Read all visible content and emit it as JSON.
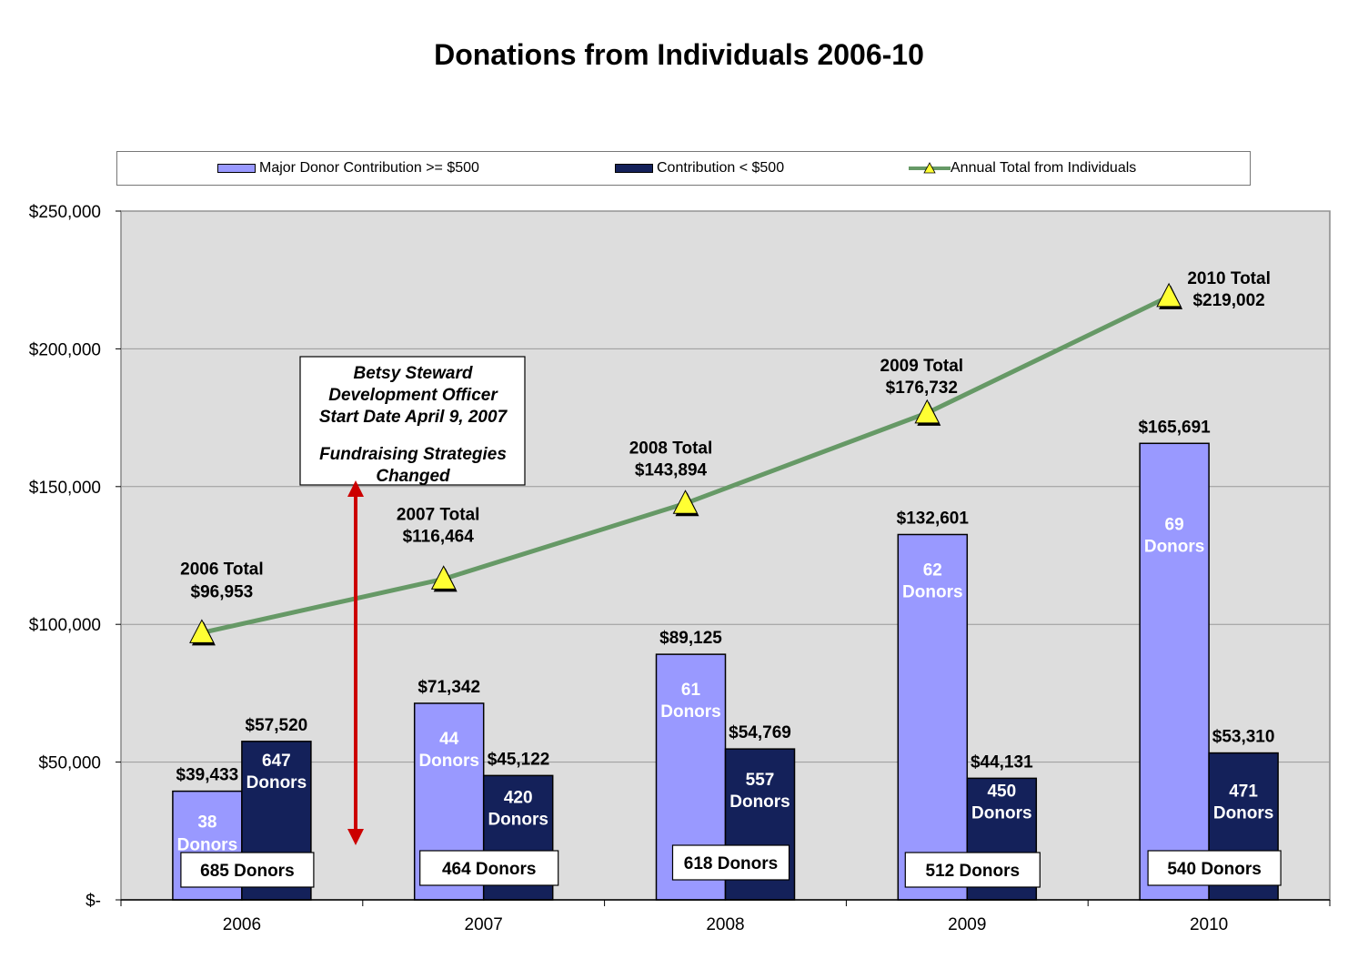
{
  "chart_data": {
    "type": "bar",
    "title": "Donations from Individuals 2006-10",
    "categories": [
      "2006",
      "2007",
      "2008",
      "2009",
      "2010"
    ],
    "ylim": [
      0,
      250000
    ],
    "yticks": [
      0,
      50000,
      100000,
      150000,
      200000,
      250000
    ],
    "ytick_labels": [
      "$-",
      "$50,000",
      "$100,000",
      "$150,000",
      "$200,000",
      "$250,000"
    ],
    "grid": true,
    "legend_position": "top",
    "series": [
      {
        "name": "Major Donor Contribution >= $500",
        "kind": "bar",
        "color": "#9999FF",
        "values": [
          39433,
          71342,
          89125,
          132601,
          165691
        ],
        "value_labels": [
          "$39,433",
          "$71,342",
          "$89,125",
          "$132,601",
          "$165,691"
        ],
        "donor_lines": [
          [
            "38",
            "Donors"
          ],
          [
            "44",
            "Donors"
          ],
          [
            "61",
            "Donors"
          ],
          [
            "62",
            "Donors"
          ],
          [
            "69",
            "Donors"
          ]
        ]
      },
      {
        "name": "Contribution < $500",
        "kind": "bar",
        "color": "#14215A",
        "values": [
          57520,
          45122,
          54769,
          44131,
          53310
        ],
        "value_labels": [
          "$57,520",
          "$45,122",
          "$54,769",
          "$44,131",
          "$53,310"
        ],
        "donor_lines": [
          [
            "647",
            "Donors"
          ],
          [
            "420",
            "Donors"
          ],
          [
            "557",
            "Donors"
          ],
          [
            "450",
            "Donors"
          ],
          [
            "471",
            "Donors"
          ]
        ]
      },
      {
        "name": "Annual Total from Individuals",
        "kind": "line",
        "color": "#669966",
        "marker_color": "#FFFF33",
        "values": [
          96953,
          116464,
          143894,
          176732,
          219002
        ],
        "point_labels": [
          [
            "2006 Total",
            "$96,953"
          ],
          [
            "2007 Total",
            "$116,464"
          ],
          [
            "2008 Total",
            "$143,894"
          ],
          [
            "2009 Total",
            "$176,732"
          ],
          [
            "2010 Total",
            "$219,002"
          ]
        ]
      }
    ],
    "total_donor_boxes": [
      "685 Donors",
      "464 Donors",
      "618 Donors",
      "512 Donors",
      "540 Donors"
    ],
    "annotation": {
      "lines": [
        "Betsy Steward",
        "Development Officer",
        "Start Date April 9, 2007",
        "",
        "Fundraising Strategies",
        "Changed"
      ],
      "arrow_color": "#CC0000"
    }
  }
}
